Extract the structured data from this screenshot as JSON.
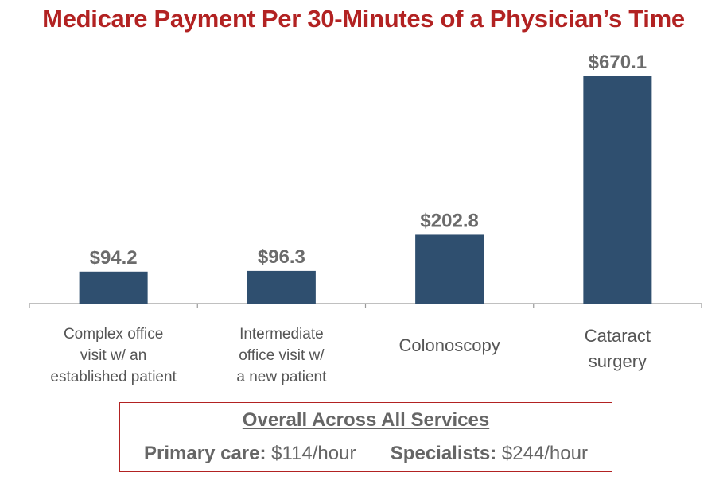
{
  "chart_data": {
    "type": "bar",
    "title": "Medicare Payment Per 30-Minutes of a Physician’s Time",
    "categories": [
      [
        "Complex office",
        "visit w/ an",
        "established patient"
      ],
      [
        "Intermediate",
        "office visit w/",
        "a new patient"
      ],
      [
        "Colonoscopy"
      ],
      [
        "Cataract",
        "surgery"
      ]
    ],
    "values": [
      94.2,
      96.3,
      202.8,
      670.1
    ],
    "value_labels": [
      "$94.2",
      "$96.3",
      "$202.8",
      "$670.1"
    ],
    "ylim": [
      0,
      670.1
    ],
    "grid": false,
    "bar_color": "#2f4f6f",
    "title_color": "#b22222"
  },
  "summary": {
    "title": "Overall Across All Services",
    "primary_label": "Primary care:",
    "primary_value": "$114/hour",
    "specialist_label": "Specialists:",
    "specialist_value": "$244/hour"
  }
}
